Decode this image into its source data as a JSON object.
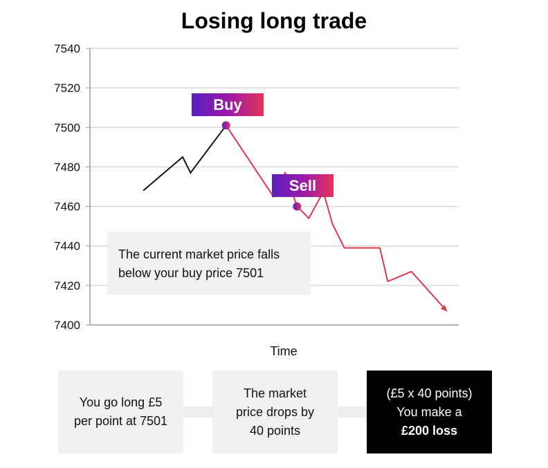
{
  "chart_data": {
    "type": "line",
    "title": "Losing long trade",
    "xlabel": "Time",
    "ylabel": "",
    "ylim": [
      7400,
      7540
    ],
    "yticks": [
      7400,
      7420,
      7440,
      7460,
      7480,
      7500,
      7520,
      7540
    ],
    "grid": true,
    "series": [
      {
        "color": "#111111",
        "x": [
          0,
          1.0,
          1.2,
          2.1
        ],
        "values": [
          7468,
          7485,
          7477,
          7501
        ]
      },
      {
        "color": "#e0344f",
        "x": [
          2.1,
          3.3,
          3.6,
          3.9,
          4.2,
          4.5,
          4.6,
          4.8,
          5.1,
          6.0,
          6.2,
          6.8,
          7.7
        ],
        "values": [
          7501,
          7465,
          7477,
          7460,
          7454,
          7465,
          7465,
          7451,
          7439,
          7439,
          7422,
          7427,
          7407
        ]
      }
    ],
    "annotations": [
      {
        "label": "Buy",
        "x": 2.1,
        "value": 7501
      },
      {
        "label": "Sell",
        "x": 3.9,
        "value": 7460
      }
    ],
    "note": [
      "The current market price falls",
      "below your buy price 7501"
    ]
  },
  "steps": [
    {
      "lines": [
        "You go long £5",
        "per point at 7501"
      ]
    },
    {
      "lines": [
        "The market",
        "price drops by",
        "40 points"
      ]
    },
    {
      "lines": [
        "(£5 x 40 points)",
        "You make a",
        "£200 loss"
      ]
    }
  ],
  "colors": {
    "gradient_start": "#5a1fc0",
    "gradient_end": "#e3335a",
    "loss_line": "#e0344f"
  }
}
